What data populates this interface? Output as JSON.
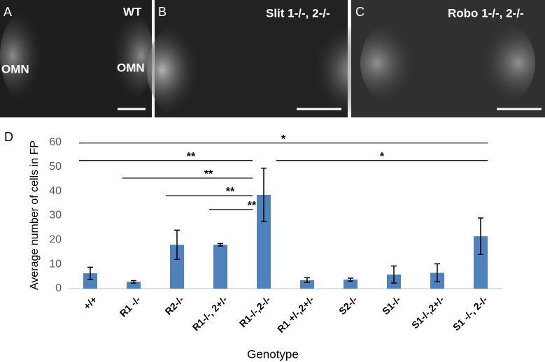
{
  "panels": [
    {
      "label": "A",
      "texts": [
        "WT",
        "OMN",
        "OMN"
      ]
    },
    {
      "label": "B",
      "texts": [
        "Slit 1-/-, 2-/-"
      ]
    },
    {
      "label": "C",
      "texts": [
        "Robo 1-/-, 2-/-"
      ]
    }
  ],
  "chart_data": {
    "type": "bar",
    "panel_label": "D",
    "y_label": "Average number of cells in FP",
    "x_label": "Genotype",
    "categories": [
      "+/+",
      "R1 -/-",
      "R2-/-",
      "R1-/-, 2+/-",
      "R1-/-,2-/-",
      "R1 +/-,2+/-",
      "S2-/-",
      "S1-/-",
      "S1-/-,2+/-",
      "S1 -/-, 2-/-"
    ],
    "values": [
      6.3,
      2.8,
      18,
      18,
      38.5,
      3.5,
      3.7,
      5.8,
      6.5,
      21.5
    ],
    "errors": [
      2.5,
      0.5,
      6,
      0.5,
      11,
      1,
      0.6,
      3.5,
      3.7,
      7.5
    ],
    "color": "#4f81bd",
    "ylim": [
      0,
      60
    ],
    "yticks": [
      0,
      10,
      20,
      30,
      40,
      50,
      60
    ],
    "grid": false,
    "annotations": [
      {
        "text": "*",
        "from": 0,
        "to": 9,
        "y": 59.8
      },
      {
        "text": "**",
        "from": 0,
        "to": 4,
        "y": 52.6
      },
      {
        "text": "*",
        "from": 4,
        "to": 9,
        "y": 52.6
      },
      {
        "text": "**",
        "from": 1,
        "to": 4,
        "y": 45.4
      },
      {
        "text": "**",
        "from": 2,
        "to": 4,
        "y": 38.2
      },
      {
        "text": "**",
        "from": 3,
        "to": 4,
        "y": 32.5
      }
    ]
  }
}
